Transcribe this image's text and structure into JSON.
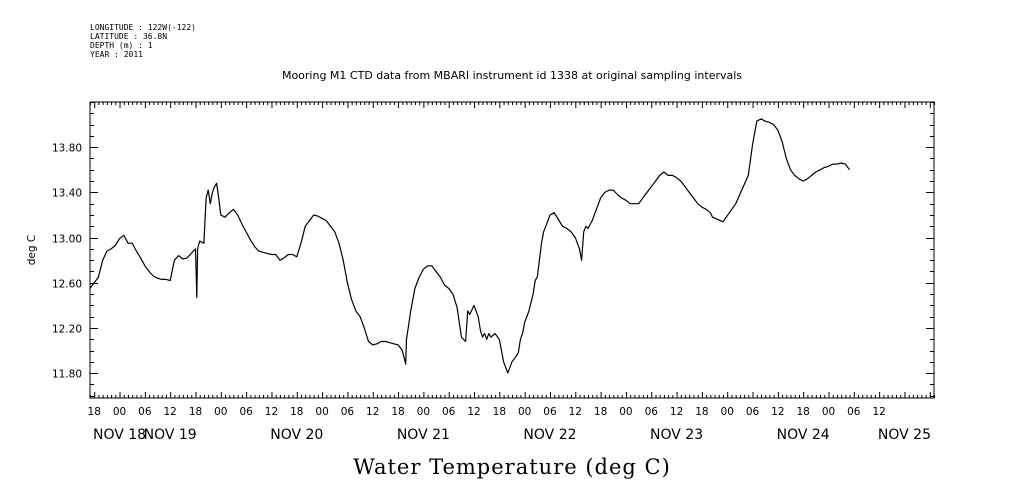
{
  "metadata_lines": [
    "LONGITUDE : 122W(-122)",
    "LATITUDE : 36.8N",
    "DEPTH (m) : 1",
    "YEAR : 2011"
  ],
  "chart_data": {
    "type": "line",
    "title": "Mooring M1 CTD data from MBARI instrument id 1338 at original sampling intervals",
    "xlabel": "Water Temperature (deg C)",
    "ylabel": "deg C",
    "x_units": "hours since 2011-11-17 17:00",
    "xlim": [
      0,
      200
    ],
    "ylim": [
      11.58,
      14.2
    ],
    "y_ticks": [
      11.8,
      12.2,
      12.6,
      13.0,
      13.4,
      13.8
    ],
    "y_tick_labels": [
      "11.80",
      "12.20",
      "12.60",
      "13.00",
      "13.40",
      "13.80"
    ],
    "x_hour_ticks": [
      {
        "x": 1,
        "label": "18"
      },
      {
        "x": 7,
        "label": "00"
      },
      {
        "x": 13,
        "label": "06"
      },
      {
        "x": 19,
        "label": "12"
      },
      {
        "x": 25,
        "label": "18"
      },
      {
        "x": 31,
        "label": "00"
      },
      {
        "x": 37,
        "label": "06"
      },
      {
        "x": 43,
        "label": "12"
      },
      {
        "x": 49,
        "label": "18"
      },
      {
        "x": 55,
        "label": "00"
      },
      {
        "x": 61,
        "label": "06"
      },
      {
        "x": 67,
        "label": "12"
      },
      {
        "x": 73,
        "label": "18"
      },
      {
        "x": 79,
        "label": "00"
      },
      {
        "x": 85,
        "label": "06"
      },
      {
        "x": 91,
        "label": "12"
      },
      {
        "x": 97,
        "label": "18"
      },
      {
        "x": 103,
        "label": "00"
      },
      {
        "x": 109,
        "label": "06"
      },
      {
        "x": 115,
        "label": "12"
      },
      {
        "x": 121,
        "label": "18"
      },
      {
        "x": 127,
        "label": "00"
      },
      {
        "x": 133,
        "label": "06"
      },
      {
        "x": 139,
        "label": "12"
      },
      {
        "x": 145,
        "label": "18"
      },
      {
        "x": 151,
        "label": "00"
      },
      {
        "x": 157,
        "label": "06"
      },
      {
        "x": 163,
        "label": "12"
      },
      {
        "x": 169,
        "label": "18"
      },
      {
        "x": 175,
        "label": "00"
      },
      {
        "x": 181,
        "label": "06"
      },
      {
        "x": 187,
        "label": "12"
      }
    ],
    "x_day_labels": [
      {
        "x": 7,
        "label": "NOV 18"
      },
      {
        "x": 19,
        "label": "NOV 19"
      },
      {
        "x": 49,
        "label": "NOV 20"
      },
      {
        "x": 79,
        "label": "NOV 21"
      },
      {
        "x": 109,
        "label": "NOV 22"
      },
      {
        "x": 139,
        "label": "NOV 23"
      },
      {
        "x": 169,
        "label": "NOV 24"
      },
      {
        "x": 193,
        "label": "NOV 25"
      }
    ],
    "series": [
      {
        "x": [
          0,
          2,
          3,
          4,
          5,
          6,
          7,
          8,
          9,
          10,
          11,
          12,
          13,
          14,
          15,
          16,
          17,
          18,
          19,
          20,
          21,
          22,
          23,
          24,
          25,
          25.3,
          25.5,
          25.7,
          26,
          27,
          27.5,
          28,
          28.5,
          29,
          29.5,
          30,
          30.5,
          31,
          32,
          33,
          34,
          35,
          36,
          37,
          38,
          39,
          40,
          41,
          42,
          43,
          44,
          45,
          46,
          47,
          48,
          49,
          50,
          51,
          52,
          53,
          54,
          55,
          56,
          57,
          58,
          59,
          60,
          61,
          62,
          63,
          64,
          65,
          66,
          67,
          68,
          69,
          70,
          71,
          72,
          73,
          74,
          74.8,
          75,
          76,
          77,
          78,
          79,
          80,
          81,
          82,
          83,
          84,
          85,
          86,
          87,
          88,
          89,
          89.5,
          90,
          91,
          92,
          92.5,
          93,
          93.5,
          94,
          94.5,
          95,
          96,
          97,
          98,
          99,
          100,
          101,
          101.5,
          102,
          102.5,
          103,
          104,
          105,
          105.5,
          106,
          106.5,
          107,
          107.5,
          108,
          108.5,
          109,
          110,
          111,
          112,
          113,
          114,
          115,
          116,
          116.5,
          117,
          117.5,
          118,
          119,
          120,
          121,
          122,
          123,
          124,
          125,
          126,
          127,
          128,
          129,
          130,
          131,
          132,
          133,
          134,
          135,
          136,
          137,
          138,
          139,
          140,
          141,
          142,
          143,
          144,
          145,
          146,
          147,
          147.5,
          150,
          153,
          156,
          157,
          158,
          159,
          160,
          161,
          162,
          163,
          164,
          165,
          166,
          167,
          168,
          169,
          170,
          171,
          172,
          173,
          174,
          175,
          176,
          177,
          178,
          179,
          180
        ],
        "y": [
          12.55,
          12.65,
          12.8,
          12.88,
          12.9,
          12.93,
          12.99,
          13.02,
          12.95,
          12.95,
          12.88,
          12.82,
          12.75,
          12.7,
          12.66,
          12.64,
          12.63,
          12.63,
          12.62,
          12.8,
          12.84,
          12.81,
          12.82,
          12.86,
          12.9,
          12.47,
          12.9,
          12.93,
          12.97,
          12.95,
          13.35,
          13.42,
          13.3,
          13.4,
          13.45,
          13.48,
          13.35,
          13.2,
          13.18,
          13.22,
          13.25,
          13.2,
          13.12,
          13.05,
          12.98,
          12.92,
          12.88,
          12.87,
          12.86,
          12.85,
          12.85,
          12.8,
          12.82,
          12.85,
          12.85,
          12.83,
          12.95,
          13.1,
          13.15,
          13.2,
          13.19,
          13.17,
          13.15,
          13.1,
          13.05,
          12.95,
          12.8,
          12.6,
          12.45,
          12.35,
          12.3,
          12.2,
          12.08,
          12.05,
          12.06,
          12.08,
          12.08,
          12.07,
          12.06,
          12.05,
          12.0,
          11.88,
          12.1,
          12.35,
          12.55,
          12.65,
          12.72,
          12.75,
          12.75,
          12.7,
          12.65,
          12.58,
          12.55,
          12.5,
          12.38,
          12.12,
          12.08,
          12.35,
          12.32,
          12.4,
          12.3,
          12.18,
          12.12,
          12.15,
          12.1,
          12.15,
          12.12,
          12.15,
          12.1,
          11.9,
          11.8,
          11.9,
          11.95,
          11.98,
          12.1,
          12.15,
          12.25,
          12.35,
          12.5,
          12.62,
          12.65,
          12.8,
          12.95,
          13.05,
          13.1,
          13.15,
          13.2,
          13.22,
          13.16,
          13.1,
          13.08,
          13.05,
          13.0,
          12.9,
          12.8,
          13.05,
          13.1,
          13.08,
          13.15,
          13.25,
          13.35,
          13.4,
          13.42,
          13.42,
          13.38,
          13.35,
          13.33,
          13.3,
          13.3,
          13.3,
          13.35,
          13.4,
          13.45,
          13.5,
          13.55,
          13.58,
          13.55,
          13.55,
          13.53,
          13.5,
          13.45,
          13.4,
          13.35,
          13.3,
          13.27,
          13.25,
          13.22,
          13.18,
          13.14,
          13.3,
          13.55,
          13.82,
          14.03,
          14.05,
          14.03,
          14.02,
          14.0,
          13.95,
          13.85,
          13.7,
          13.6,
          13.55,
          13.52,
          13.5,
          13.52,
          13.55,
          13.58,
          13.6,
          13.62,
          13.63,
          13.65,
          13.65,
          13.66,
          13.65,
          13.6
        ]
      }
    ]
  }
}
